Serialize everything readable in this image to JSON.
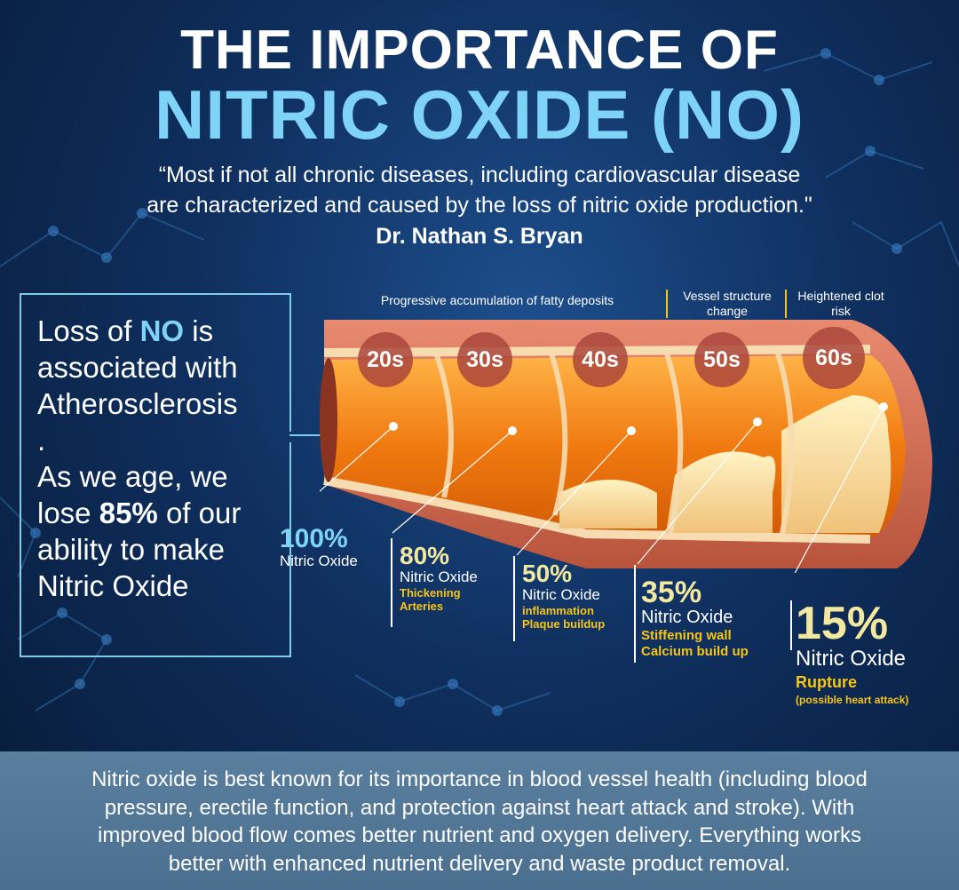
{
  "title": {
    "line1": "THE IMPORTANCE OF",
    "line2": "NITRIC OXIDE (NO)"
  },
  "quote": {
    "line1": "“Most if not all chronic diseases, including cardiovascular disease",
    "line2": "are characterized and caused by the loss of nitric oxide production.\"",
    "author": "Dr. Nathan S. Bryan"
  },
  "left_panel": {
    "t1": "Loss of ",
    "t_no": "NO",
    "t2": " is associated with Atherosclerosis",
    "t3": ".",
    "t4": "As we age, we lose ",
    "t_pct": "85%",
    "t5": " of our ability to make Nitric Oxide"
  },
  "headers": {
    "fatty": "Progressive accumulation of fatty deposits",
    "vessel": "Vessel structure change",
    "clot": "Heightened clot risk"
  },
  "stages": [
    {
      "age": "20s",
      "pct": "100%",
      "label": "Nitric Oxide",
      "note1": "",
      "note2": ""
    },
    {
      "age": "30s",
      "pct": "80%",
      "label": "Nitric Oxide",
      "note1": "Thickening",
      "note2": "Arteries"
    },
    {
      "age": "40s",
      "pct": "50%",
      "label": "Nitric Oxide",
      "note1": "inflammation",
      "note2": "Plaque buildup"
    },
    {
      "age": "50s",
      "pct": "35%",
      "label": "Nitric Oxide",
      "note1": "Stiffening wall",
      "note2": "Calcium build up"
    },
    {
      "age": "60s",
      "pct": "15%",
      "label": "Nitric Oxide",
      "note1": "Rupture",
      "note2": "(possible heart attack)"
    }
  ],
  "bottom": {
    "line1": "Nitric oxide is best known for its importance in blood vessel health (including blood",
    "line2": "pressure, erectile function, and protection against heart attack and stroke). With",
    "line3": "improved blood flow comes better nutrient and oxygen delivery. Everything works",
    "line4": "better with enhanced nutrient delivery and waste product removal."
  },
  "colors": {
    "accent": "#7fd3f7",
    "highlight": "#f5c518",
    "pct": "#f2e8a0"
  }
}
